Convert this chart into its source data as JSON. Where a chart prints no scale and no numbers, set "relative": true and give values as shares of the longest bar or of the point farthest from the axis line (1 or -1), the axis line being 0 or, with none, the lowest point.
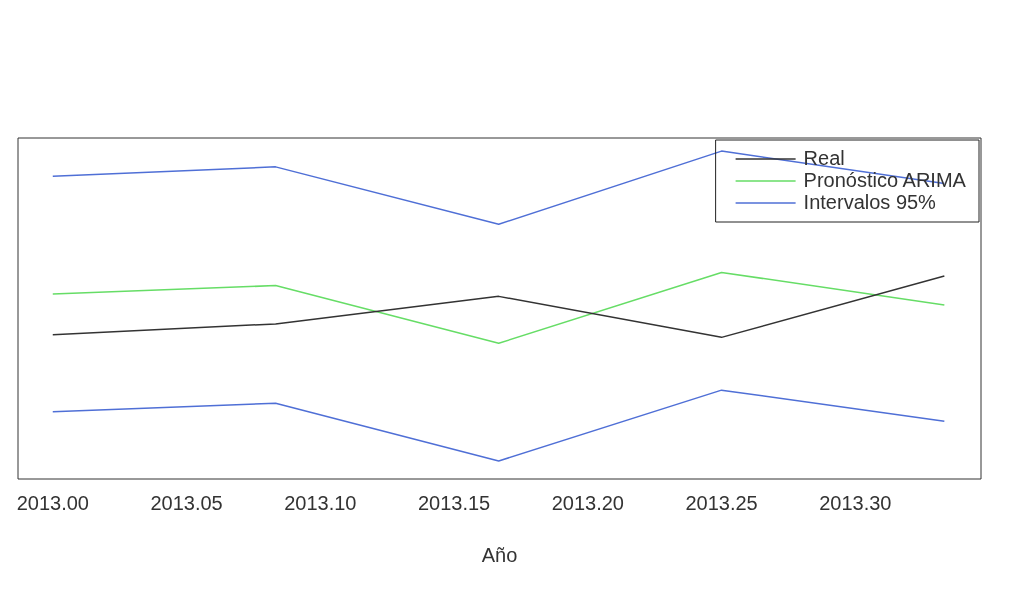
{
  "chart_data": {
    "type": "line",
    "xlabel": "Año",
    "relative": true,
    "xlim": [
      2012.987,
      2013.347
    ],
    "xticks": [
      {
        "value": 2013,
        "label": "2013.00"
      },
      {
        "value": 2013.05,
        "label": "2013.05"
      },
      {
        "value": 2013.1,
        "label": "2013.10"
      },
      {
        "value": 2013.15,
        "label": "2013.15"
      },
      {
        "value": 2013.2,
        "label": "2013.20"
      },
      {
        "value": 2013.25,
        "label": "2013.25"
      },
      {
        "value": 2013.3,
        "label": "2013.30"
      }
    ],
    "x": [
      2013,
      2013.0833,
      2013.1667,
      2013.25,
      2013.3333
    ],
    "series": [
      {
        "name": "Real",
        "color": "#333333",
        "values": [
          0.44,
          0.473,
          0.557,
          0.432,
          0.619
        ]
      },
      {
        "name": "Pronóstico ARIMA",
        "color": "#66dd66",
        "values": [
          0.564,
          0.59,
          0.414,
          0.63,
          0.531
        ]
      },
      {
        "name": "Intervalos 95%",
        "color": "#4f6fd6",
        "values": [
          0.923,
          0.952,
          0.777,
          1,
          0.901
        ]
      },
      {
        "color": "#4f6fd6",
        "values": [
          0.205,
          0.231,
          0.055,
          0.271,
          0.176
        ]
      }
    ],
    "legend": "top right",
    "grid": false,
    "tick_labels": "x",
    "marker": "none",
    "line_style": "solid"
  }
}
